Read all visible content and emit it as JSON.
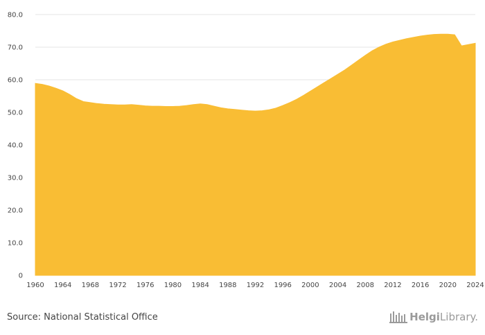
{
  "chart_data": {
    "type": "area",
    "title": "",
    "xlabel": "",
    "ylabel": "",
    "x": [
      1960,
      1961,
      1962,
      1963,
      1964,
      1965,
      1966,
      1967,
      1968,
      1969,
      1970,
      1971,
      1972,
      1973,
      1974,
      1975,
      1976,
      1977,
      1978,
      1979,
      1980,
      1981,
      1982,
      1983,
      1984,
      1985,
      1986,
      1987,
      1988,
      1989,
      1990,
      1991,
      1992,
      1993,
      1994,
      1995,
      1996,
      1997,
      1998,
      1999,
      2000,
      2001,
      2002,
      2003,
      2004,
      2005,
      2006,
      2007,
      2008,
      2009,
      2010,
      2011,
      2012,
      2013,
      2014,
      2015,
      2016,
      2017,
      2018,
      2019,
      2020,
      2021,
      2022,
      2023,
      2024
    ],
    "values": [
      58.9,
      58.6,
      58.1,
      57.4,
      56.6,
      55.5,
      54.2,
      53.3,
      53.0,
      52.7,
      52.5,
      52.4,
      52.3,
      52.3,
      52.4,
      52.2,
      52.0,
      51.9,
      51.9,
      51.8,
      51.8,
      51.9,
      52.1,
      52.4,
      52.6,
      52.4,
      51.9,
      51.4,
      51.1,
      50.9,
      50.7,
      50.5,
      50.4,
      50.5,
      50.8,
      51.3,
      52.1,
      53.0,
      54.0,
      55.2,
      56.5,
      57.8,
      59.1,
      60.4,
      61.7,
      63.0,
      64.5,
      66.0,
      67.5,
      68.9,
      70.0,
      70.9,
      71.6,
      72.1,
      72.6,
      73.0,
      73.4,
      73.7,
      73.9,
      74.0,
      74.0,
      73.8,
      70.4,
      70.8,
      71.2
    ],
    "xlim": [
      1960,
      2024
    ],
    "ylim": [
      0,
      80
    ],
    "y_ticks": [
      "0",
      "10.0",
      "20.0",
      "30.0",
      "40.0",
      "50.0",
      "60.0",
      "70.0",
      "80.0"
    ],
    "x_ticks": [
      "1960",
      "1964",
      "1968",
      "1972",
      "1976",
      "1980",
      "1984",
      "1988",
      "1992",
      "1996",
      "2000",
      "2004",
      "2008",
      "2012",
      "2016",
      "2020",
      "2024"
    ],
    "grid": true,
    "fill_color": "#F9BD34",
    "grid_color": "#e6e6e6"
  },
  "footer": {
    "source": "Source: National Statistical Office",
    "logo_part1": "Helgi",
    "logo_part2": "Library."
  }
}
